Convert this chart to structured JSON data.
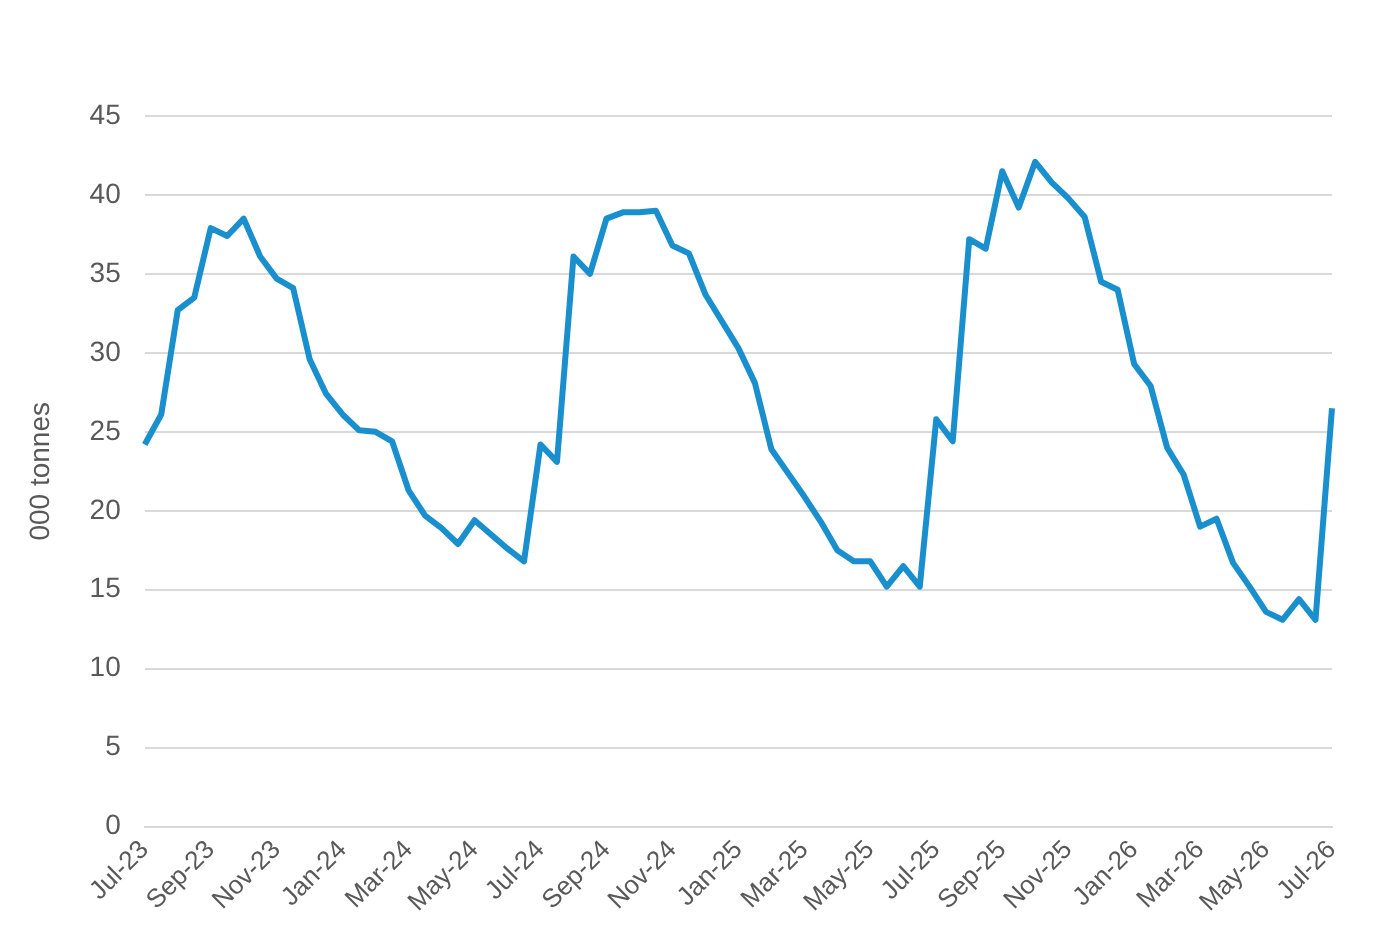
{
  "chart_data": {
    "type": "line",
    "ylabel": "000 tonnes",
    "categories": [
      "Jul-23",
      null,
      null,
      null,
      "Sep-23",
      null,
      null,
      null,
      "Nov-23",
      null,
      null,
      null,
      "Jan-24",
      null,
      null,
      null,
      "Mar-24",
      null,
      null,
      null,
      "May-24",
      null,
      null,
      null,
      "Jul-24",
      null,
      null,
      null,
      "Sep-24",
      null,
      null,
      null,
      "Nov-24",
      null,
      null,
      null,
      "Jan-25",
      null,
      null,
      null,
      "Mar-25",
      null,
      null,
      null,
      "May-25",
      null,
      null,
      null,
      "Jul-25",
      null,
      null,
      null,
      "Sep-25",
      null,
      null,
      null,
      "Nov-25",
      null,
      null,
      null,
      "Jan-26",
      null,
      null,
      null,
      "Mar-26",
      null,
      null,
      null,
      "May-26",
      null,
      null,
      null,
      "Jul-26"
    ],
    "series": [
      {
        "color": "#1a8fce",
        "values": [
          24.2,
          26.1,
          32.7,
          33.5,
          37.9,
          37.4,
          38.5,
          36.1,
          34.7,
          34.1,
          29.6,
          27.4,
          26.1,
          25.1,
          25.0,
          24.4,
          21.3,
          19.7,
          18.9,
          17.9,
          19.4,
          18.5,
          17.6,
          16.8,
          24.2,
          23.1,
          36.1,
          35.0,
          38.5,
          38.9,
          38.9,
          39.0,
          36.8,
          36.3,
          33.7,
          32.0,
          30.3,
          28.1,
          23.9,
          22.4,
          20.9,
          19.3,
          17.5,
          16.8,
          16.8,
          15.2,
          16.5,
          15.2,
          25.8,
          24.4,
          37.2,
          36.6,
          41.5,
          39.2,
          42.1,
          40.8,
          39.8,
          38.6,
          34.5,
          34.0,
          29.3,
          27.9,
          24.0,
          22.3,
          19.0,
          19.5,
          16.7,
          15.2,
          13.6,
          13.1,
          14.4,
          13.1,
          26.5
        ]
      }
    ],
    "ylim": [
      0,
      45
    ],
    "yticks": [
      0,
      5,
      10,
      15,
      20,
      25,
      30,
      35,
      40,
      45
    ],
    "grid": "y",
    "legend": false,
    "marker": "none",
    "line_style": "solid"
  }
}
